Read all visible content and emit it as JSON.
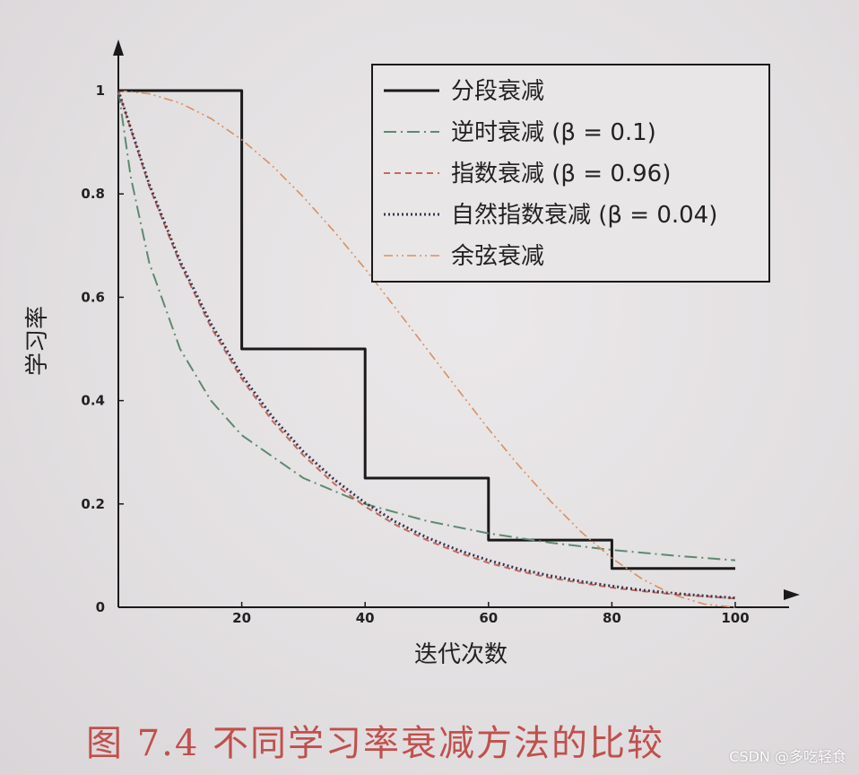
{
  "chart_data": {
    "type": "line",
    "title": "",
    "xlabel": "迭代次数",
    "ylabel": "学习率",
    "xlim": [
      0,
      100
    ],
    "ylim": [
      0,
      1
    ],
    "xticks": [
      20,
      40,
      60,
      80,
      100
    ],
    "xtick_labels": [
      "20",
      "40",
      "60",
      "80",
      "100"
    ],
    "yticks": [
      0,
      0.2,
      0.4,
      0.6,
      0.8,
      1
    ],
    "ytick_labels": [
      "0",
      "0.2",
      "0.4",
      "0.6",
      "0.8",
      "1"
    ],
    "grid": false,
    "legend_position": "top-right",
    "series": [
      {
        "name": "分段衰减",
        "style": "solid",
        "color": "#1a1a1a",
        "x": [
          0,
          20,
          20,
          40,
          40,
          60,
          60,
          80,
          80,
          100
        ],
        "y": [
          1,
          1,
          0.5,
          0.5,
          0.25,
          0.25,
          0.13,
          0.13,
          0.075,
          0.075
        ]
      },
      {
        "name": "逆时衰减 (β = 0.1)",
        "style": "dashdot",
        "color": "#5d8a6e",
        "x": [
          0,
          2,
          5,
          10,
          15,
          20,
          30,
          40,
          50,
          60,
          70,
          80,
          90,
          100
        ],
        "y": [
          1,
          0.833,
          0.667,
          0.5,
          0.4,
          0.333,
          0.25,
          0.2,
          0.167,
          0.143,
          0.125,
          0.111,
          0.1,
          0.091
        ]
      },
      {
        "name": "指数衰减 (β = 0.96)",
        "style": "dashed",
        "color": "#c46a5a",
        "x": [
          0,
          5,
          10,
          15,
          20,
          25,
          30,
          35,
          40,
          45,
          50,
          55,
          60,
          65,
          70,
          75,
          80,
          85,
          90,
          95,
          100
        ],
        "y": [
          1,
          0.815,
          0.665,
          0.542,
          0.442,
          0.36,
          0.294,
          0.239,
          0.195,
          0.159,
          0.13,
          0.106,
          0.086,
          0.07,
          0.057,
          0.047,
          0.038,
          0.031,
          0.025,
          0.021,
          0.017
        ]
      },
      {
        "name": "自然指数衰减 (β = 0.04)",
        "style": "dotted",
        "color": "#3a3552",
        "x": [
          0,
          5,
          10,
          15,
          20,
          25,
          30,
          35,
          40,
          45,
          50,
          55,
          60,
          65,
          70,
          75,
          80,
          85,
          90,
          95,
          100
        ],
        "y": [
          1,
          0.819,
          0.67,
          0.549,
          0.449,
          0.368,
          0.301,
          0.247,
          0.202,
          0.165,
          0.135,
          0.111,
          0.091,
          0.074,
          0.061,
          0.05,
          0.041,
          0.033,
          0.027,
          0.022,
          0.018
        ]
      },
      {
        "name": "余弦衰减",
        "style": "dashdotdot",
        "color": "#d89060",
        "x": [
          0,
          5,
          10,
          15,
          20,
          25,
          30,
          35,
          40,
          45,
          50,
          55,
          60,
          65,
          70,
          75,
          80,
          85,
          90,
          95,
          100
        ],
        "y": [
          1,
          0.994,
          0.976,
          0.946,
          0.905,
          0.854,
          0.794,
          0.727,
          0.655,
          0.578,
          0.5,
          0.422,
          0.345,
          0.273,
          0.206,
          0.146,
          0.095,
          0.054,
          0.024,
          0.006,
          0
        ]
      }
    ]
  },
  "caption": "图 7.4   不同学习率衰减方法的比较",
  "watermark": "CSDN @多吃轻食",
  "colors": {
    "axis": "#1a1a1a",
    "caption": "#c0504d",
    "background": "#e4e1e3"
  }
}
